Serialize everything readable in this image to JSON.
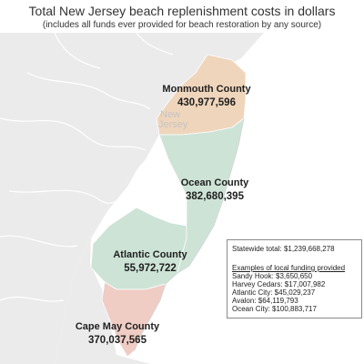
{
  "header": {
    "title": "Total New Jersey beach replenishment costs in dollars",
    "subtitle": "(includes all funds ever provided for beach restoration by any source)"
  },
  "map": {
    "state_label_line1": "New",
    "state_label_line2": "Jersey",
    "counties": [
      {
        "name": "Monmouth County",
        "value": "430,977,596",
        "color": "#efd5bb"
      },
      {
        "name": "Ocean County",
        "value": "382,680,395",
        "color": "#cde3d6"
      },
      {
        "name": "Atlantic County",
        "value": "55,972,722",
        "color": "#cde3d6"
      },
      {
        "name": "Cape May County",
        "value": "370,037,565",
        "color": "#efccc4"
      }
    ]
  },
  "info_box": {
    "total_label": "Statewide total:",
    "total_value": "$1,239,668,278",
    "examples_header": "Examples of local funding provided",
    "examples": [
      "Sandy Hook: $3,650,650",
      "Harvey Cedars: $17,007,982",
      "Atlantic City: $45,029,237",
      "Avalon: $64,119,793",
      "Ocean City: $100,883,717"
    ]
  },
  "colors": {
    "land": "#ebebeb",
    "water": "#ffffff",
    "border": "#ffffff"
  }
}
